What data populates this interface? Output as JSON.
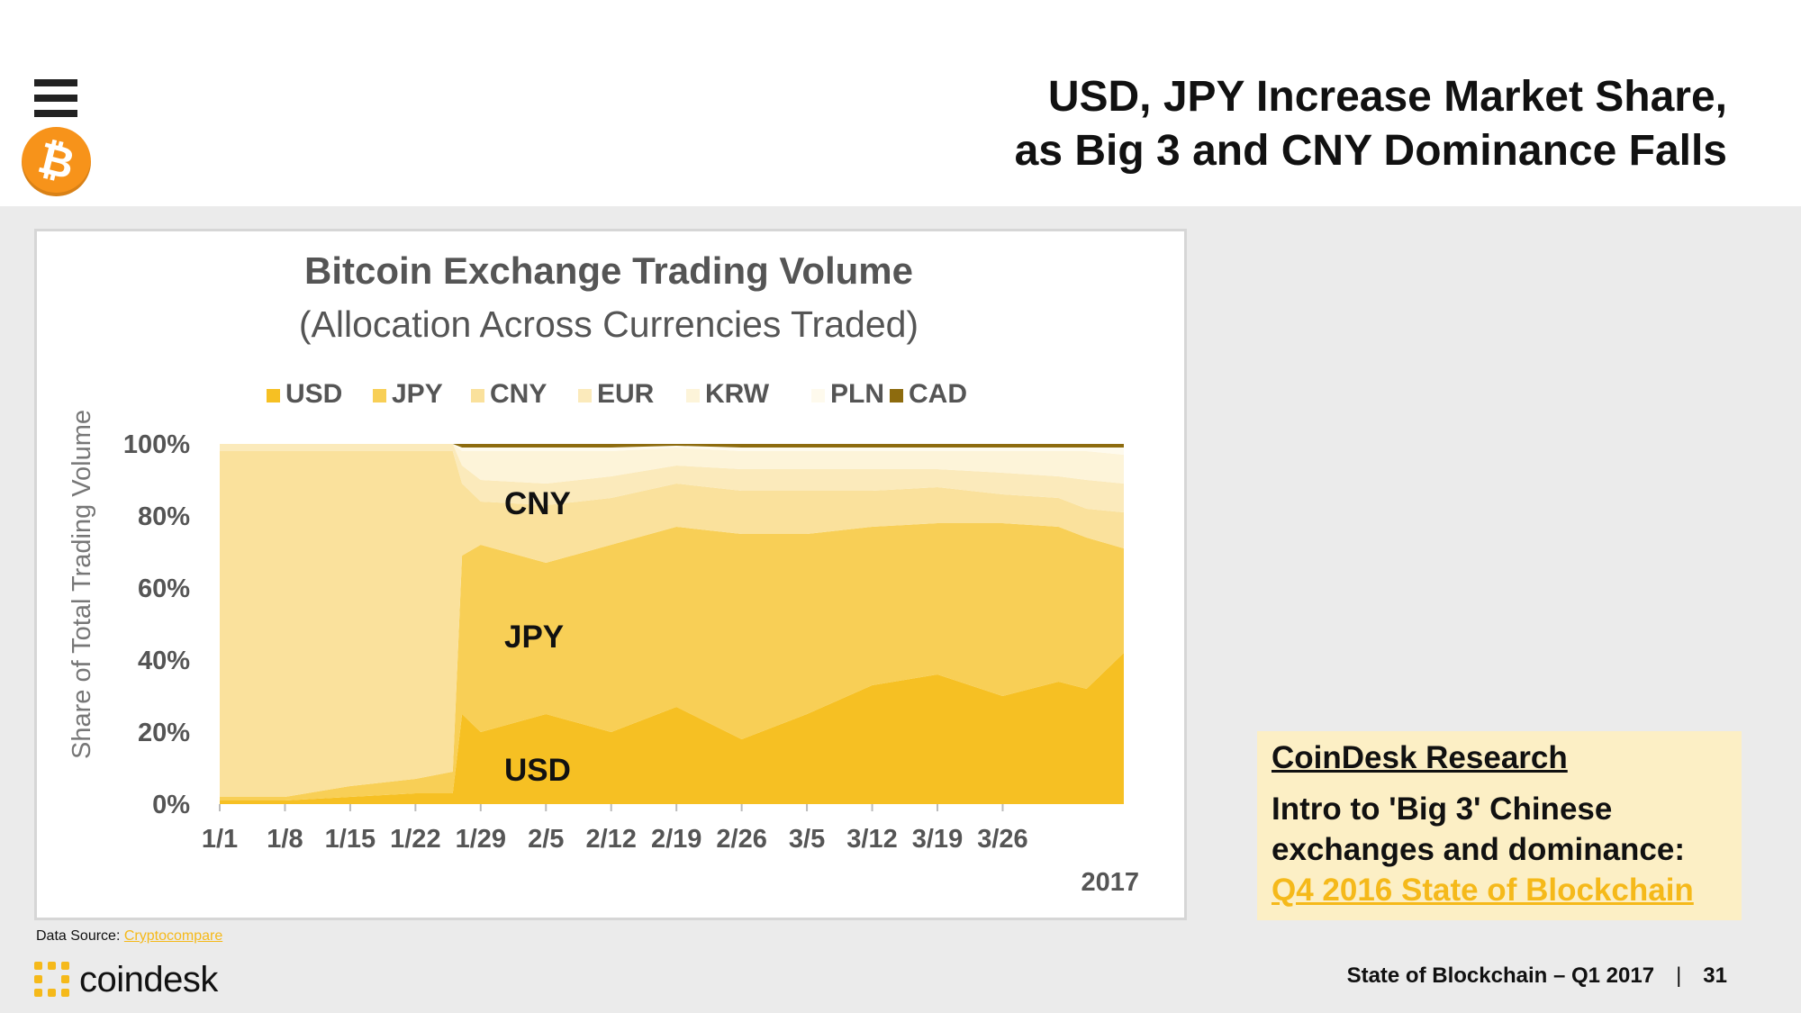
{
  "header": {
    "title_line1": "USD, JPY Increase Market Share,",
    "title_line2": "as Big 3 and CNY Dominance Falls"
  },
  "icons": {
    "menu": "hamburger-icon",
    "logo": "bitcoin-logo",
    "bitcoin_symbol": "₿"
  },
  "colors": {
    "USD": "#f6c023",
    "JPY": "#f8cf56",
    "CNY": "#fae19c",
    "EUR": "#fbeabb",
    "KRW": "#fdf4d9",
    "PLN": "#fefaed",
    "CAD": "#8d6b0e",
    "accent": "#f5b91a",
    "research_bg": "#fcefc5"
  },
  "chart_data": {
    "type": "area",
    "title": "Bitcoin Exchange Trading Volume",
    "subtitle": "(Allocation Across Currencies Traded)",
    "ylabel": "Share of Total Trading Volume",
    "year_label": "2017",
    "ylim": [
      0,
      100
    ],
    "yticks": [
      "0%",
      "20%",
      "40%",
      "60%",
      "80%",
      "100%"
    ],
    "x_start": "2017-01-01",
    "x_end": "2017-04-08",
    "xticks": [
      "1/1",
      "1/8",
      "1/15",
      "1/22",
      "1/29",
      "2/5",
      "2/12",
      "2/19",
      "2/26",
      "3/5",
      "3/12",
      "3/19",
      "3/26"
    ],
    "legend": [
      "USD",
      "JPY",
      "CNY",
      "EUR",
      "KRW",
      "PLN",
      "CAD"
    ],
    "legend_position": "top",
    "area_labels": [
      "CNY",
      "JPY",
      "USD"
    ],
    "x": [
      "2017-01-01",
      "2017-01-08",
      "2017-01-15",
      "2017-01-22",
      "2017-01-26",
      "2017-01-27",
      "2017-01-29",
      "2017-02-05",
      "2017-02-12",
      "2017-02-19",
      "2017-02-26",
      "2017-03-05",
      "2017-03-12",
      "2017-03-19",
      "2017-03-26",
      "2017-04-01",
      "2017-04-04",
      "2017-04-08"
    ],
    "series": [
      {
        "name": "USD",
        "values": [
          1,
          1,
          2,
          3,
          3,
          25,
          20,
          25,
          20,
          27,
          18,
          25,
          33,
          36,
          30,
          34,
          32,
          42
        ]
      },
      {
        "name": "JPY",
        "values": [
          1,
          1,
          3,
          4,
          6,
          44,
          52,
          42,
          52,
          50,
          57,
          50,
          44,
          42,
          48,
          43,
          42,
          29
        ]
      },
      {
        "name": "CNY",
        "values": [
          96,
          96,
          93,
          91,
          89,
          20,
          12,
          16,
          13,
          12,
          12,
          12,
          10,
          10,
          8,
          8,
          8,
          10
        ]
      },
      {
        "name": "EUR",
        "values": [
          2,
          2,
          2,
          2,
          2,
          5,
          6,
          6,
          6,
          5,
          6,
          6,
          6,
          5,
          6,
          6,
          8,
          8
        ]
      },
      {
        "name": "KRW",
        "values": [
          0,
          0,
          0,
          0,
          0,
          4,
          8,
          9,
          7,
          5,
          5,
          5,
          5,
          5,
          6,
          7,
          8,
          8
        ]
      },
      {
        "name": "PLN",
        "values": [
          0,
          0,
          0,
          0,
          0,
          1,
          1,
          1,
          1,
          0.5,
          1,
          1,
          1,
          1,
          1,
          1,
          1,
          2
        ]
      },
      {
        "name": "CAD",
        "values": [
          0,
          0,
          0,
          0,
          0,
          1,
          1,
          1,
          1,
          0.5,
          1,
          1,
          1,
          1,
          1,
          1,
          1,
          1
        ]
      }
    ],
    "grid": false
  },
  "data_source": {
    "label": "Data Source:",
    "link_text": "Cryptocompare"
  },
  "brand": {
    "name": "coindesk"
  },
  "research": {
    "heading": "CoinDesk Research",
    "text": "Intro to 'Big 3' Chinese exchanges and dominance:",
    "link_text": "Q4 2016 State of Blockchain"
  },
  "footer": {
    "text": "State of Blockchain – Q1 2017",
    "separator": "|",
    "page": "31"
  }
}
